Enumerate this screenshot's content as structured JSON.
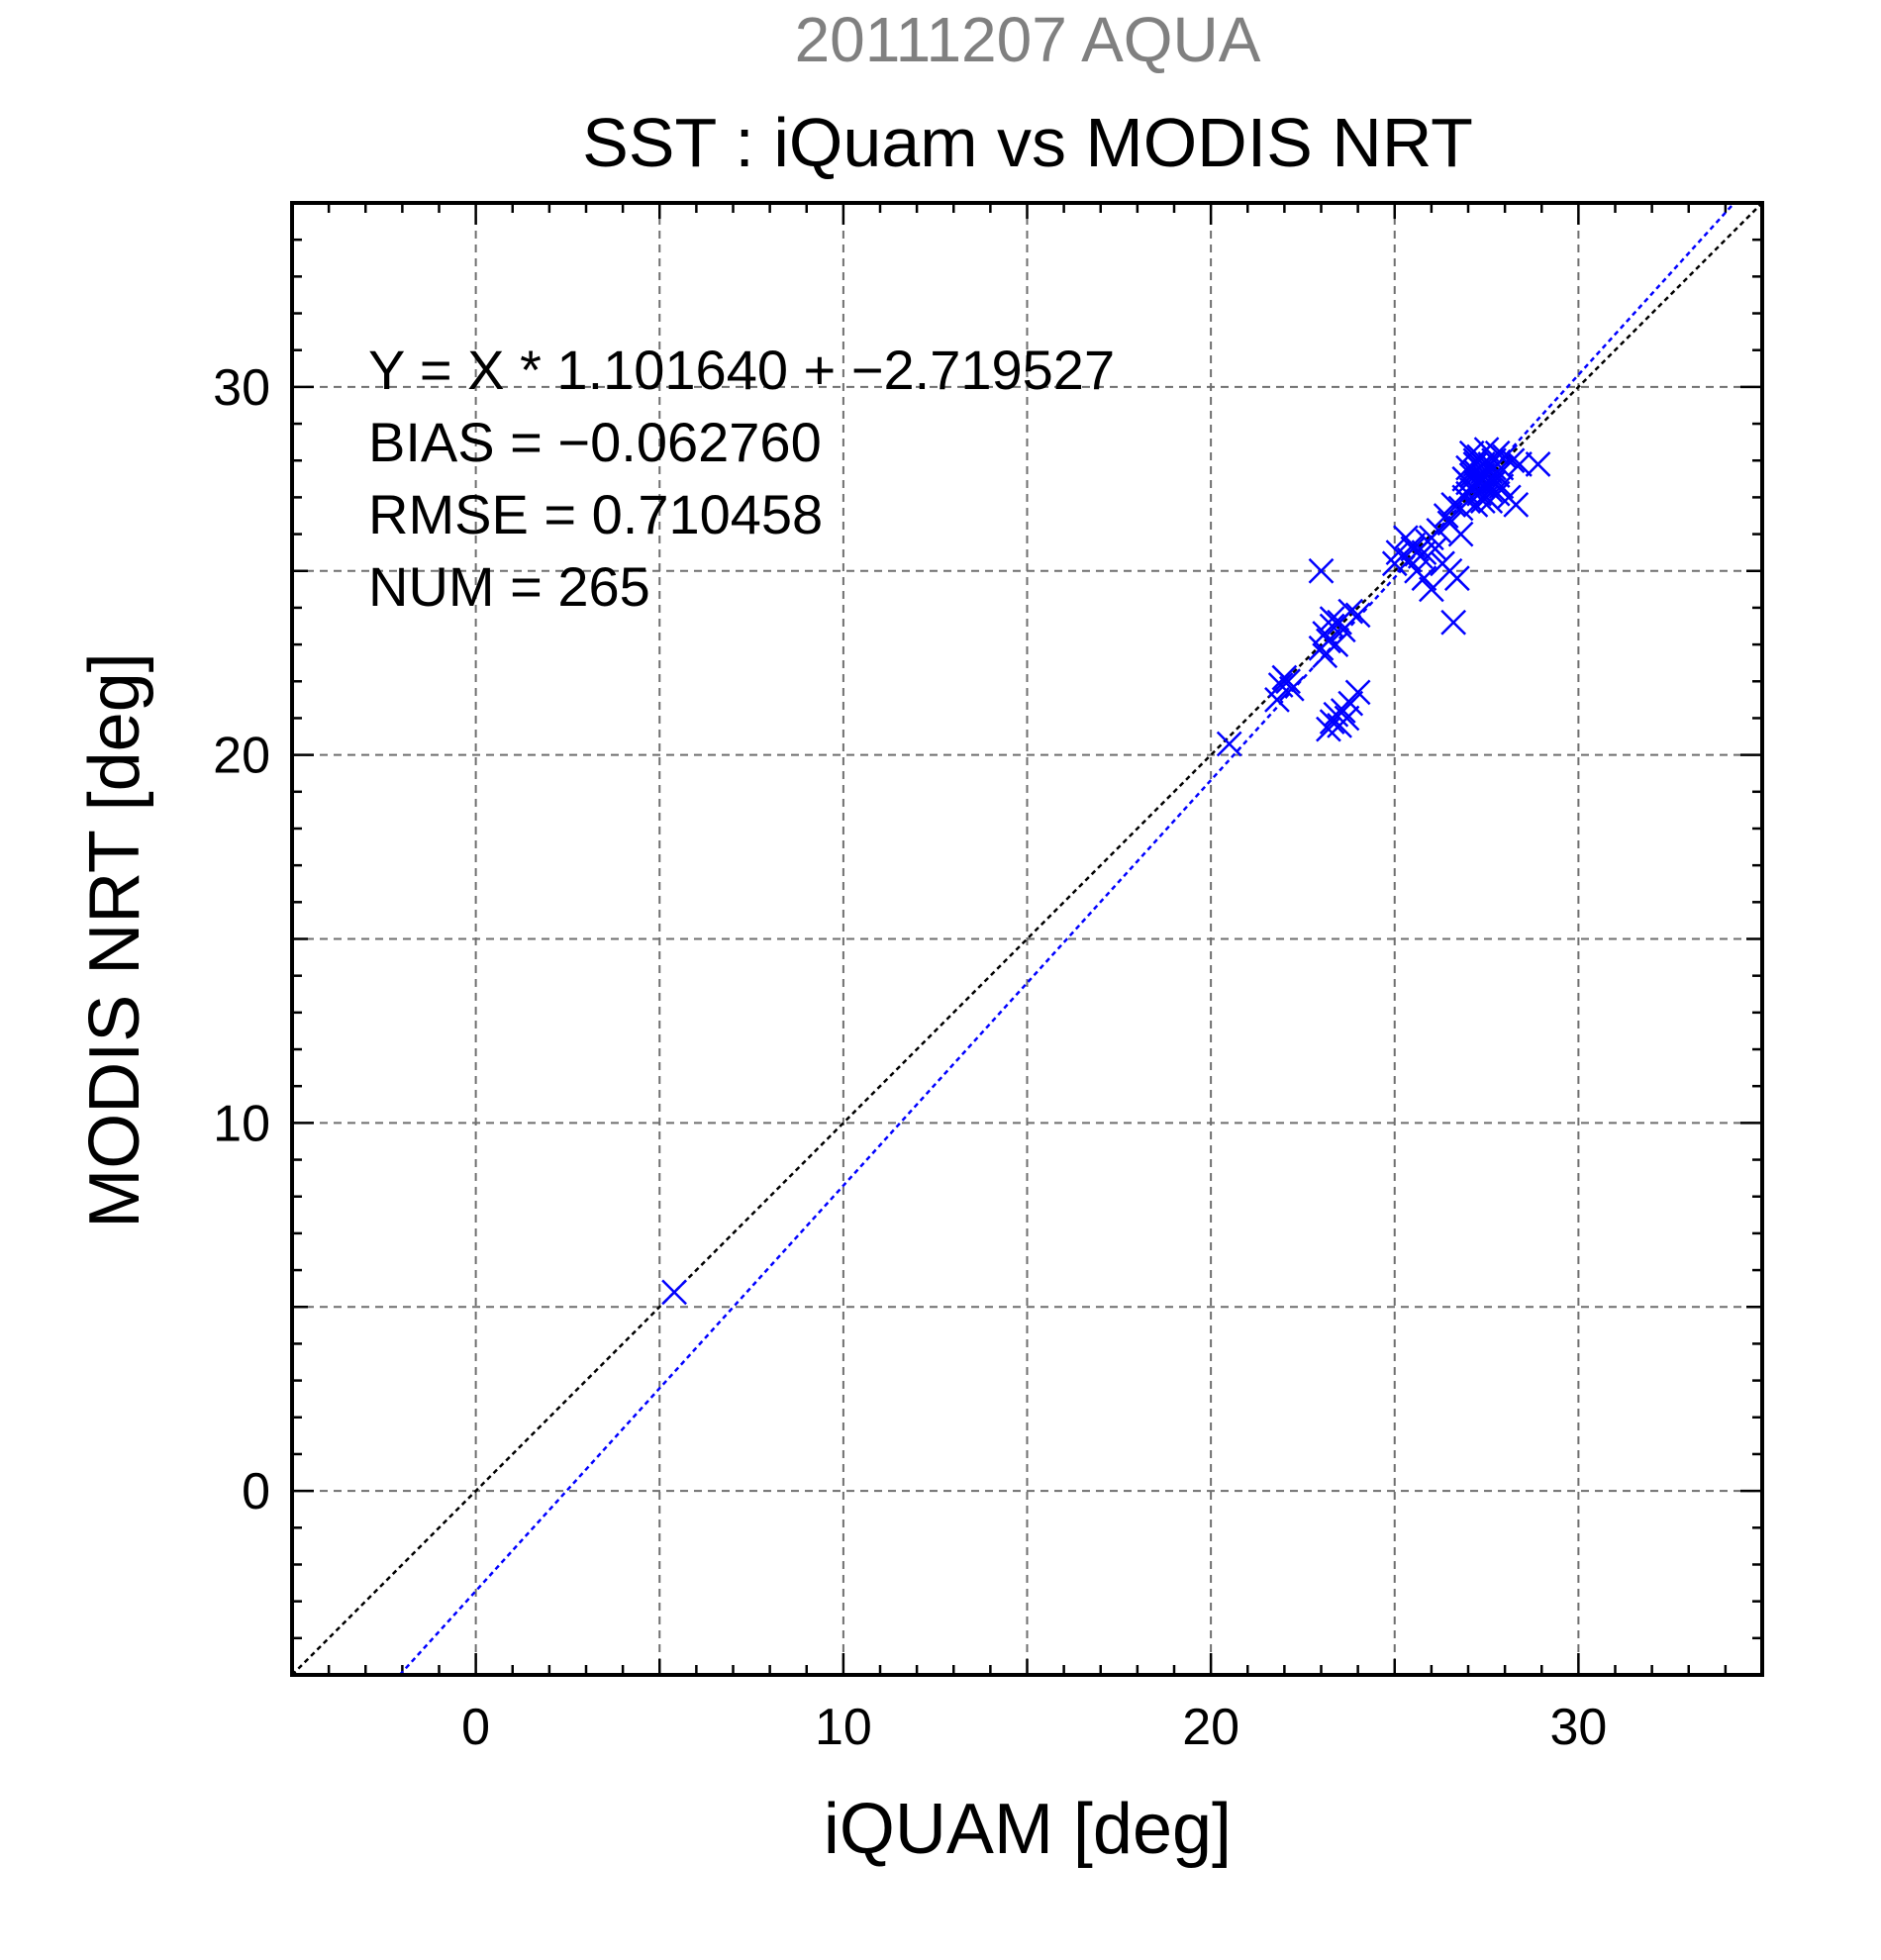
{
  "chart_data": {
    "type": "scatter",
    "suptitle": "20111207 AQUA",
    "title": "SST : iQuam vs MODIS NRT",
    "xlabel": "iQUAM [deg]",
    "ylabel": "MODIS NRT [deg]",
    "xlim": [
      -5,
      35
    ],
    "ylim": [
      -5,
      35
    ],
    "xticks": [
      "0",
      "10",
      "20",
      "30"
    ],
    "yticks": [
      "0",
      "10",
      "20",
      "30"
    ],
    "tick_values": [
      0,
      10,
      20,
      30
    ],
    "grid_values": [
      0,
      5,
      10,
      15,
      20,
      25,
      30
    ],
    "grid": true,
    "marker_color": "#0000ff",
    "stats": {
      "line1": "Y = X * 1.101640 + −2.719527",
      "line2": "BIAS = −0.062760",
      "line3": "RMSE = 0.710458",
      "line4": "NUM = 265"
    },
    "lines": [
      {
        "role": "identity",
        "slope": 1.0,
        "intercept": 0.0,
        "color": "#000000"
      },
      {
        "role": "regression",
        "slope": 1.10164,
        "intercept": -2.719527,
        "color": "#0000ff"
      }
    ],
    "series": [
      {
        "points": [
          [
            5.4,
            5.4
          ],
          [
            20.5,
            20.3
          ],
          [
            21.8,
            21.5
          ],
          [
            21.9,
            21.9
          ],
          [
            22.0,
            22.1
          ],
          [
            22.1,
            22.0
          ],
          [
            22.2,
            21.8
          ],
          [
            23.0,
            25.0
          ],
          [
            23.0,
            22.9
          ],
          [
            23.1,
            23.3
          ],
          [
            23.2,
            23.1
          ],
          [
            23.3,
            23.5
          ],
          [
            23.4,
            23.0
          ],
          [
            23.1,
            22.7
          ],
          [
            23.5,
            23.6
          ],
          [
            23.6,
            23.4
          ],
          [
            23.8,
            23.9
          ],
          [
            24.0,
            23.8
          ],
          [
            23.3,
            23.7
          ],
          [
            23.2,
            20.7
          ],
          [
            23.3,
            20.9
          ],
          [
            23.4,
            21.1
          ],
          [
            23.5,
            20.8
          ],
          [
            23.6,
            21.2
          ],
          [
            23.8,
            21.4
          ],
          [
            24.0,
            21.7
          ],
          [
            23.7,
            21.0
          ],
          [
            25.0,
            25.2
          ],
          [
            25.1,
            25.5
          ],
          [
            25.3,
            25.9
          ],
          [
            25.4,
            25.3
          ],
          [
            25.5,
            25.7
          ],
          [
            25.6,
            25.0
          ],
          [
            25.7,
            25.4
          ],
          [
            25.8,
            24.8
          ],
          [
            25.9,
            25.8
          ],
          [
            26.0,
            24.5
          ],
          [
            26.1,
            25.6
          ],
          [
            26.2,
            26.1
          ],
          [
            26.3,
            25.2
          ],
          [
            26.5,
            25.0
          ],
          [
            26.7,
            24.8
          ],
          [
            26.8,
            26.0
          ],
          [
            26.6,
            23.6
          ],
          [
            25.5,
            25.6
          ],
          [
            25.8,
            25.5
          ],
          [
            26.0,
            25.9
          ],
          [
            26.4,
            26.5
          ],
          [
            26.5,
            26.3
          ],
          [
            26.6,
            26.8
          ],
          [
            26.8,
            26.7
          ],
          [
            26.9,
            27.0
          ],
          [
            27.0,
            26.9
          ],
          [
            27.1,
            27.2
          ],
          [
            27.2,
            27.4
          ],
          [
            27.3,
            27.1
          ],
          [
            27.4,
            27.6
          ],
          [
            27.5,
            27.3
          ],
          [
            27.6,
            27.5
          ],
          [
            27.0,
            27.8
          ],
          [
            27.1,
            28.2
          ],
          [
            27.2,
            28.0
          ],
          [
            27.3,
            28.1
          ],
          [
            27.4,
            27.9
          ],
          [
            27.5,
            28.3
          ],
          [
            27.6,
            27.7
          ],
          [
            27.7,
            28.0
          ],
          [
            27.8,
            28.2
          ],
          [
            27.9,
            27.8
          ],
          [
            28.0,
            28.1
          ],
          [
            28.2,
            28.0
          ],
          [
            28.4,
            27.9
          ],
          [
            27.0,
            27.4
          ],
          [
            27.1,
            27.6
          ],
          [
            27.2,
            27.7
          ],
          [
            27.3,
            27.5
          ],
          [
            27.4,
            27.3
          ],
          [
            27.5,
            27.8
          ],
          [
            27.6,
            27.2
          ],
          [
            27.7,
            27.4
          ],
          [
            27.8,
            27.6
          ],
          [
            27.2,
            26.8
          ],
          [
            27.4,
            26.9
          ],
          [
            27.5,
            27.0
          ],
          [
            27.6,
            26.9
          ],
          [
            27.8,
            27.1
          ],
          [
            28.1,
            27.0
          ],
          [
            28.3,
            26.8
          ],
          [
            28.9,
            27.9
          ],
          [
            27.9,
            27.3
          ],
          [
            26.9,
            27.5
          ],
          [
            27.0,
            27.1
          ],
          [
            27.1,
            27.3
          ],
          [
            27.3,
            27.8
          ],
          [
            27.4,
            27.7
          ],
          [
            27.5,
            27.6
          ],
          [
            27.6,
            27.9
          ],
          [
            27.7,
            27.8
          ],
          [
            27.2,
            27.9
          ],
          [
            27.3,
            27.4
          ]
        ]
      }
    ]
  }
}
